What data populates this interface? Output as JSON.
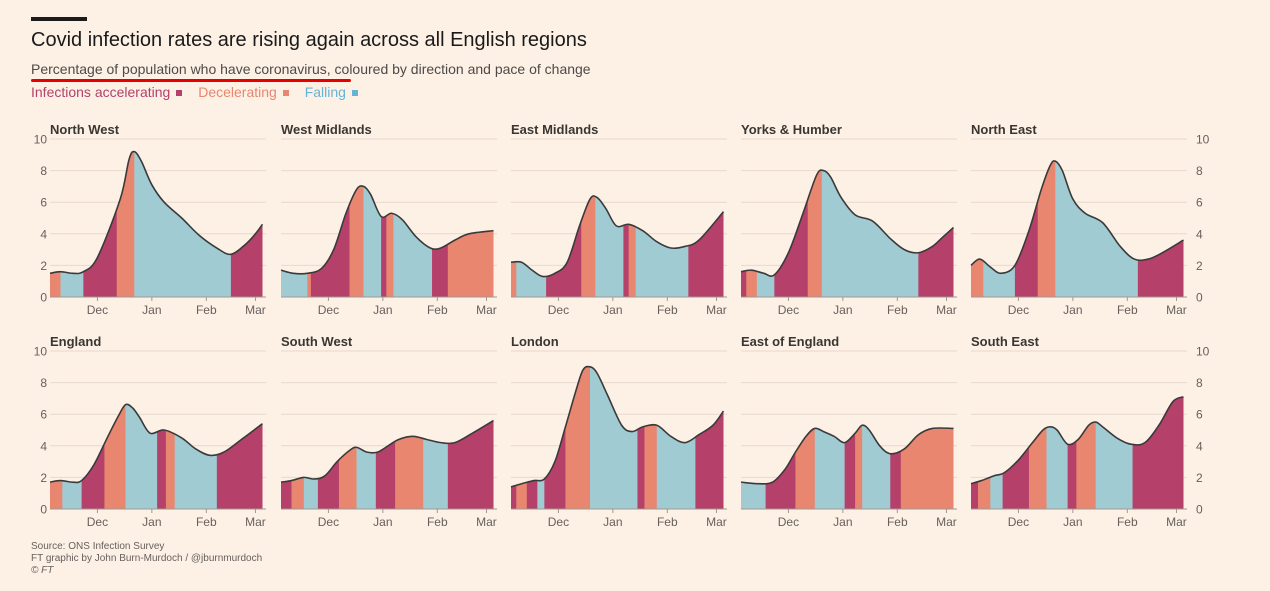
{
  "title": "Covid infection rates are rising again across all English regions",
  "subtitle": "Percentage of population who have coronavirus, coloured by direction and pace of change",
  "legend": [
    {
      "label": "Infections accelerating",
      "color": "#b5406a"
    },
    {
      "label": "Decelerating",
      "color": "#e9866f"
    },
    {
      "label": "Falling",
      "color": "#66b3d6"
    }
  ],
  "footer": {
    "source": "Source: ONS Infection Survey",
    "credit": "FT graphic by John Burn-Murdoch / @jburnmurdoch",
    "copyright": "© FT"
  },
  "colors": {
    "accelerating": "#b5406a",
    "decelerating": "#e9866f",
    "falling": "#a0cbd2",
    "line": "#3a3a3a",
    "grid": "#e7d8cc",
    "axis": "#a09890",
    "text": "#66605c"
  },
  "chart_data": {
    "type": "area",
    "x_unit": "days since 1 Nov 2020",
    "ylim": [
      0,
      10
    ],
    "yticks": [
      0,
      2,
      4,
      6,
      8,
      10
    ],
    "xticks": [
      {
        "label": "Dec",
        "x": 42
      },
      {
        "label": "Jan",
        "x": 73
      },
      {
        "label": "Feb",
        "x": 104
      },
      {
        "label": "Mar",
        "x": 132
      }
    ],
    "xlim": [
      15,
      138
    ],
    "panels": [
      {
        "name": "North West",
        "points": [
          [
            15,
            1.5
          ],
          [
            21,
            1.6
          ],
          [
            28,
            1.5
          ],
          [
            34,
            1.6
          ],
          [
            42,
            2.5
          ],
          [
            55,
            6.2
          ],
          [
            60,
            8.7
          ],
          [
            63,
            9.2
          ],
          [
            67,
            8.6
          ],
          [
            73,
            7.1
          ],
          [
            80,
            6.0
          ],
          [
            90,
            5.0
          ],
          [
            100,
            3.9
          ],
          [
            110,
            3.1
          ],
          [
            118,
            2.7
          ],
          [
            126,
            3.3
          ],
          [
            132,
            4.0
          ],
          [
            136,
            4.6
          ]
        ],
        "segments": [
          [
            15,
            21,
            "d"
          ],
          [
            21,
            34,
            "f"
          ],
          [
            34,
            53,
            "a"
          ],
          [
            53,
            63,
            "d"
          ],
          [
            63,
            118,
            "f"
          ],
          [
            118,
            136,
            "a"
          ]
        ]
      },
      {
        "name": "West Midlands",
        "points": [
          [
            15,
            1.7
          ],
          [
            22,
            1.5
          ],
          [
            30,
            1.5
          ],
          [
            38,
            1.8
          ],
          [
            45,
            3.0
          ],
          [
            52,
            5.3
          ],
          [
            58,
            6.8
          ],
          [
            62,
            7.0
          ],
          [
            66,
            6.5
          ],
          [
            72,
            5.1
          ],
          [
            78,
            5.3
          ],
          [
            84,
            4.9
          ],
          [
            92,
            3.8
          ],
          [
            100,
            3.1
          ],
          [
            106,
            3.1
          ],
          [
            114,
            3.6
          ],
          [
            122,
            4.0
          ],
          [
            136,
            4.2
          ]
        ],
        "segments": [
          [
            15,
            30,
            "f"
          ],
          [
            30,
            32,
            "d"
          ],
          [
            32,
            54,
            "a"
          ],
          [
            54,
            62,
            "d"
          ],
          [
            62,
            72,
            "f"
          ],
          [
            72,
            75,
            "a"
          ],
          [
            75,
            79,
            "d"
          ],
          [
            79,
            101,
            "f"
          ],
          [
            101,
            110,
            "a"
          ],
          [
            110,
            136,
            "d"
          ]
        ]
      },
      {
        "name": "East Midlands",
        "points": [
          [
            15,
            2.2
          ],
          [
            21,
            2.2
          ],
          [
            27,
            1.7
          ],
          [
            33,
            1.3
          ],
          [
            40,
            1.5
          ],
          [
            47,
            2.2
          ],
          [
            54,
            4.5
          ],
          [
            60,
            6.2
          ],
          [
            64,
            6.3
          ],
          [
            69,
            5.6
          ],
          [
            75,
            4.5
          ],
          [
            82,
            4.6
          ],
          [
            90,
            4.2
          ],
          [
            98,
            3.5
          ],
          [
            106,
            3.1
          ],
          [
            114,
            3.2
          ],
          [
            122,
            3.6
          ],
          [
            136,
            5.4
          ]
        ],
        "segments": [
          [
            15,
            18,
            "d"
          ],
          [
            18,
            35,
            "f"
          ],
          [
            35,
            55,
            "a"
          ],
          [
            55,
            63,
            "d"
          ],
          [
            63,
            79,
            "f"
          ],
          [
            79,
            82,
            "a"
          ],
          [
            82,
            86,
            "d"
          ],
          [
            86,
            116,
            "f"
          ],
          [
            116,
            136,
            "a"
          ]
        ]
      },
      {
        "name": "Yorks & Humber",
        "points": [
          [
            15,
            1.6
          ],
          [
            21,
            1.7
          ],
          [
            28,
            1.5
          ],
          [
            34,
            1.4
          ],
          [
            42,
            2.8
          ],
          [
            50,
            5.2
          ],
          [
            58,
            7.7
          ],
          [
            62,
            8.0
          ],
          [
            66,
            7.6
          ],
          [
            72,
            6.3
          ],
          [
            80,
            5.2
          ],
          [
            90,
            4.8
          ],
          [
            100,
            3.7
          ],
          [
            108,
            3.0
          ],
          [
            116,
            2.8
          ],
          [
            124,
            3.2
          ],
          [
            130,
            3.8
          ],
          [
            136,
            4.4
          ]
        ],
        "segments": [
          [
            15,
            18,
            "a"
          ],
          [
            18,
            24,
            "d"
          ],
          [
            24,
            34,
            "f"
          ],
          [
            34,
            53,
            "a"
          ],
          [
            53,
            61,
            "d"
          ],
          [
            61,
            116,
            "f"
          ],
          [
            116,
            136,
            "a"
          ]
        ]
      },
      {
        "name": "North East",
        "points": [
          [
            15,
            2.0
          ],
          [
            20,
            2.4
          ],
          [
            26,
            1.9
          ],
          [
            32,
            1.5
          ],
          [
            40,
            2.0
          ],
          [
            48,
            4.2
          ],
          [
            55,
            6.8
          ],
          [
            60,
            8.3
          ],
          [
            63,
            8.6
          ],
          [
            67,
            8.0
          ],
          [
            73,
            6.2
          ],
          [
            80,
            5.3
          ],
          [
            90,
            4.7
          ],
          [
            100,
            3.2
          ],
          [
            108,
            2.4
          ],
          [
            116,
            2.4
          ],
          [
            124,
            2.8
          ],
          [
            136,
            3.6
          ]
        ],
        "segments": [
          [
            15,
            22,
            "d"
          ],
          [
            22,
            40,
            "f"
          ],
          [
            40,
            53,
            "a"
          ],
          [
            53,
            63,
            "d"
          ],
          [
            63,
            110,
            "f"
          ],
          [
            110,
            136,
            "a"
          ]
        ]
      },
      {
        "name": "England",
        "points": [
          [
            15,
            1.7
          ],
          [
            21,
            1.8
          ],
          [
            28,
            1.7
          ],
          [
            33,
            1.8
          ],
          [
            40,
            2.8
          ],
          [
            48,
            4.6
          ],
          [
            54,
            5.9
          ],
          [
            58,
            6.6
          ],
          [
            62,
            6.4
          ],
          [
            66,
            5.8
          ],
          [
            72,
            4.8
          ],
          [
            80,
            5.0
          ],
          [
            90,
            4.5
          ],
          [
            98,
            3.8
          ],
          [
            106,
            3.4
          ],
          [
            114,
            3.6
          ],
          [
            124,
            4.4
          ],
          [
            136,
            5.4
          ]
        ],
        "segments": [
          [
            15,
            22,
            "d"
          ],
          [
            22,
            33,
            "f"
          ],
          [
            33,
            46,
            "a"
          ],
          [
            46,
            58,
            "d"
          ],
          [
            58,
            76,
            "f"
          ],
          [
            76,
            81,
            "a"
          ],
          [
            81,
            86,
            "d"
          ],
          [
            86,
            110,
            "f"
          ],
          [
            110,
            136,
            "a"
          ]
        ]
      },
      {
        "name": "South West",
        "points": [
          [
            15,
            1.7
          ],
          [
            21,
            1.8
          ],
          [
            28,
            2.0
          ],
          [
            34,
            1.9
          ],
          [
            40,
            2.1
          ],
          [
            47,
            3.0
          ],
          [
            54,
            3.7
          ],
          [
            58,
            3.9
          ],
          [
            64,
            3.6
          ],
          [
            70,
            3.6
          ],
          [
            76,
            4.0
          ],
          [
            82,
            4.4
          ],
          [
            90,
            4.6
          ],
          [
            98,
            4.4
          ],
          [
            106,
            4.2
          ],
          [
            114,
            4.2
          ],
          [
            124,
            4.8
          ],
          [
            136,
            5.6
          ]
        ],
        "segments": [
          [
            15,
            21,
            "a"
          ],
          [
            21,
            28,
            "d"
          ],
          [
            28,
            36,
            "f"
          ],
          [
            36,
            48,
            "a"
          ],
          [
            48,
            58,
            "d"
          ],
          [
            58,
            69,
            "f"
          ],
          [
            69,
            80,
            "a"
          ],
          [
            80,
            96,
            "d"
          ],
          [
            96,
            110,
            "f"
          ],
          [
            110,
            136,
            "a"
          ]
        ]
      },
      {
        "name": "London",
        "points": [
          [
            15,
            1.4
          ],
          [
            21,
            1.6
          ],
          [
            28,
            1.8
          ],
          [
            34,
            1.9
          ],
          [
            40,
            3.0
          ],
          [
            46,
            5.2
          ],
          [
            52,
            7.5
          ],
          [
            56,
            8.8
          ],
          [
            60,
            9.0
          ],
          [
            64,
            8.6
          ],
          [
            70,
            7.2
          ],
          [
            78,
            5.3
          ],
          [
            84,
            4.9
          ],
          [
            90,
            5.2
          ],
          [
            98,
            5.3
          ],
          [
            106,
            4.6
          ],
          [
            114,
            4.2
          ],
          [
            122,
            4.7
          ],
          [
            130,
            5.3
          ],
          [
            136,
            6.2
          ]
        ],
        "segments": [
          [
            15,
            18,
            "a"
          ],
          [
            18,
            24,
            "d"
          ],
          [
            24,
            30,
            "a"
          ],
          [
            30,
            34,
            "f"
          ],
          [
            34,
            46,
            "a"
          ],
          [
            46,
            60,
            "d"
          ],
          [
            60,
            87,
            "f"
          ],
          [
            87,
            91,
            "a"
          ],
          [
            91,
            98,
            "d"
          ],
          [
            98,
            120,
            "f"
          ],
          [
            120,
            136,
            "a"
          ]
        ]
      },
      {
        "name": "East of England",
        "points": [
          [
            15,
            1.7
          ],
          [
            25,
            1.6
          ],
          [
            33,
            1.7
          ],
          [
            40,
            2.5
          ],
          [
            46,
            3.6
          ],
          [
            52,
            4.6
          ],
          [
            57,
            5.1
          ],
          [
            62,
            4.9
          ],
          [
            68,
            4.6
          ],
          [
            74,
            4.2
          ],
          [
            80,
            4.8
          ],
          [
            84,
            5.3
          ],
          [
            88,
            5.0
          ],
          [
            94,
            4.0
          ],
          [
            100,
            3.5
          ],
          [
            108,
            3.8
          ],
          [
            116,
            4.7
          ],
          [
            124,
            5.1
          ],
          [
            136,
            5.1
          ]
        ],
        "segments": [
          [
            15,
            29,
            "f"
          ],
          [
            29,
            46,
            "a"
          ],
          [
            46,
            57,
            "d"
          ],
          [
            57,
            74,
            "f"
          ],
          [
            74,
            80,
            "a"
          ],
          [
            80,
            84,
            "d"
          ],
          [
            84,
            100,
            "f"
          ],
          [
            100,
            106,
            "a"
          ],
          [
            106,
            136,
            "d"
          ]
        ]
      },
      {
        "name": "South East",
        "points": [
          [
            15,
            1.6
          ],
          [
            21,
            1.8
          ],
          [
            28,
            2.1
          ],
          [
            34,
            2.3
          ],
          [
            42,
            3.1
          ],
          [
            50,
            4.2
          ],
          [
            56,
            5.0
          ],
          [
            60,
            5.2
          ],
          [
            64,
            5.0
          ],
          [
            70,
            4.1
          ],
          [
            76,
            4.4
          ],
          [
            82,
            5.3
          ],
          [
            86,
            5.5
          ],
          [
            90,
            5.2
          ],
          [
            98,
            4.5
          ],
          [
            106,
            4.1
          ],
          [
            114,
            4.2
          ],
          [
            122,
            5.3
          ],
          [
            130,
            6.8
          ],
          [
            136,
            7.1
          ]
        ],
        "segments": [
          [
            15,
            19,
            "a"
          ],
          [
            19,
            26,
            "d"
          ],
          [
            26,
            33,
            "f"
          ],
          [
            33,
            48,
            "a"
          ],
          [
            48,
            58,
            "d"
          ],
          [
            58,
            70,
            "f"
          ],
          [
            70,
            75,
            "a"
          ],
          [
            75,
            86,
            "d"
          ],
          [
            86,
            107,
            "f"
          ],
          [
            107,
            136,
            "a"
          ]
        ]
      }
    ]
  }
}
